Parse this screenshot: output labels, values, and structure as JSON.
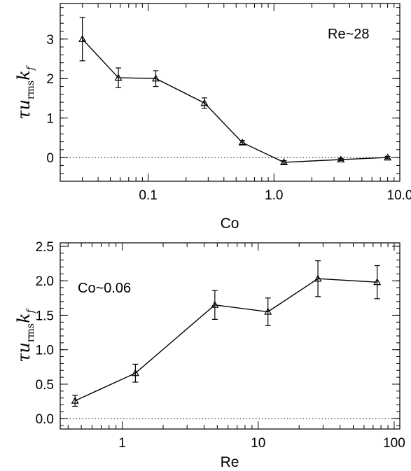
{
  "chart_data": [
    {
      "type": "line",
      "xscale": "log",
      "xlabel": "Co",
      "ylabel": "τu_rms k_f",
      "annotation": "Re~28",
      "xlim": [
        0.02,
        10
      ],
      "ylim": [
        -0.6,
        3.9
      ],
      "xticks": [
        {
          "v": 0.1,
          "label": "0.1"
        },
        {
          "v": 1,
          "label": "1.0"
        },
        {
          "v": 10,
          "label": "10.0"
        }
      ],
      "yticks": [
        {
          "v": 0,
          "label": "0"
        },
        {
          "v": 1,
          "label": "1"
        },
        {
          "v": 2,
          "label": "2"
        },
        {
          "v": 3,
          "label": "3"
        }
      ],
      "zero_line": true,
      "series": [
        {
          "x": [
            0.03,
            0.058,
            0.115,
            0.28,
            0.56,
            1.2,
            3.4,
            8.0
          ],
          "y": [
            3.0,
            2.02,
            2.0,
            1.38,
            0.38,
            -0.12,
            -0.05,
            0.0
          ],
          "err": [
            0.55,
            0.25,
            0.2,
            0.13,
            0.05,
            0.04,
            0.03,
            0.03
          ]
        }
      ]
    },
    {
      "type": "line",
      "xscale": "log",
      "xlabel": "Re",
      "ylabel": "τu_rms k_f",
      "annotation": "Co~0.06",
      "xlim": [
        0.35,
        110
      ],
      "ylim": [
        -0.15,
        2.55
      ],
      "xticks": [
        {
          "v": 1,
          "label": "1"
        },
        {
          "v": 10,
          "label": "10"
        },
        {
          "v": 100,
          "label": "100"
        }
      ],
      "yticks": [
        {
          "v": 0,
          "label": "0.0"
        },
        {
          "v": 0.5,
          "label": "0.5"
        },
        {
          "v": 1,
          "label": "1.0"
        },
        {
          "v": 1.5,
          "label": "1.5"
        },
        {
          "v": 2,
          "label": "2.0"
        },
        {
          "v": 2.5,
          "label": "2.5"
        }
      ],
      "zero_line": true,
      "series": [
        {
          "x": [
            0.45,
            1.25,
            4.8,
            11.8,
            27.5,
            75
          ],
          "y": [
            0.26,
            0.66,
            1.65,
            1.55,
            2.03,
            1.98
          ],
          "err": [
            0.08,
            0.13,
            0.21,
            0.2,
            0.26,
            0.24
          ]
        }
      ]
    }
  ]
}
